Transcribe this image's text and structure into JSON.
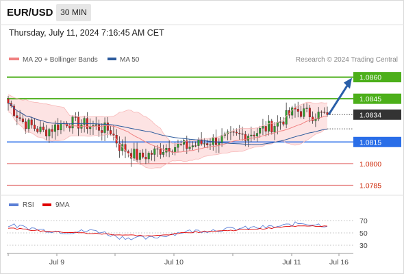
{
  "header": {
    "pair": "EUR/USD",
    "timeframe": "30 MIN",
    "datetime": "Thursday, July 11, 2024 7:16:45 AM CET"
  },
  "legend": {
    "bollinger": {
      "label": "MA 20 + Bollinger Bands",
      "color": "#f08080"
    },
    "ma50": {
      "label": "MA 50",
      "color": "#2c5a9c"
    }
  },
  "credit": "Research © 2024 Trading Central",
  "rsi_legend": {
    "rsi": {
      "label": "RSI",
      "color": "#5b7fd6"
    },
    "ma9": {
      "label": "9MA",
      "color": "#e00000"
    }
  },
  "chart_data": {
    "type": "candlestick",
    "price_range": [
      1.0779,
      1.0866
    ],
    "levels": [
      {
        "label": "1.0860",
        "value": 1.086,
        "kind": "resistance",
        "color": "#4caf1a"
      },
      {
        "label": "1.0845",
        "value": 1.0845,
        "kind": "resistance",
        "color": "#4caf1a"
      },
      {
        "label": "1.0834",
        "value": 1.0834,
        "kind": "current",
        "color": "#333333"
      },
      {
        "label": "1.0815",
        "value": 1.0815,
        "kind": "pivot",
        "color": "#2a6ee8"
      },
      {
        "label": "1.0800",
        "value": 1.08,
        "kind": "support",
        "color": "#e06060"
      },
      {
        "label": "1.0785",
        "value": 1.0785,
        "kind": "support",
        "color": "#e06060"
      }
    ],
    "x_labels": [
      "Jul 9",
      "Jul 10",
      "Jul 11",
      "Jul 16"
    ],
    "candle_count": 110,
    "close_anchors": [
      [
        0,
        1.0842
      ],
      [
        5,
        1.0829
      ],
      [
        12,
        1.0822
      ],
      [
        20,
        1.0829
      ],
      [
        27,
        1.0827
      ],
      [
        35,
        1.0823
      ],
      [
        38,
        1.0812
      ],
      [
        45,
        1.0804
      ],
      [
        55,
        1.0812
      ],
      [
        62,
        1.0812
      ],
      [
        70,
        1.0816
      ],
      [
        78,
        1.0819
      ],
      [
        85,
        1.0822
      ],
      [
        92,
        1.0828
      ],
      [
        98,
        1.0837
      ],
      [
        104,
        1.0834
      ],
      [
        109,
        1.0834
      ]
    ],
    "forecast_target": 1.086,
    "colors": {
      "up": "#2e9e2e",
      "down": "#e02020",
      "outline": "#333333"
    },
    "rsi": {
      "ticks": [
        70,
        50,
        30
      ],
      "range": [
        20,
        80
      ],
      "rsi_anchors": [
        [
          0,
          63
        ],
        [
          10,
          56
        ],
        [
          20,
          51
        ],
        [
          30,
          54
        ],
        [
          38,
          43
        ],
        [
          48,
          41
        ],
        [
          60,
          52
        ],
        [
          72,
          55
        ],
        [
          82,
          58
        ],
        [
          92,
          60
        ],
        [
          100,
          66
        ],
        [
          109,
          62
        ]
      ],
      "ma9_anchors": [
        [
          0,
          58
        ],
        [
          12,
          53
        ],
        [
          25,
          50
        ],
        [
          38,
          47
        ],
        [
          50,
          45
        ],
        [
          62,
          51
        ],
        [
          75,
          54
        ],
        [
          88,
          57
        ],
        [
          100,
          62
        ],
        [
          109,
          61
        ]
      ]
    }
  }
}
